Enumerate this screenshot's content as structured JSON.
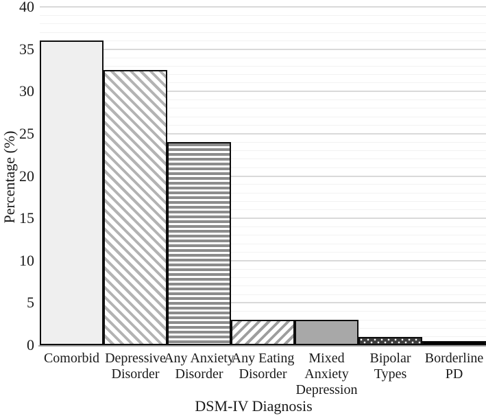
{
  "chart_data": {
    "type": "bar",
    "title": "",
    "xlabel": "DSM-IV Diagnosis",
    "ylabel": "Percentage (%)",
    "categories": [
      "Comorbid",
      "Depressive Disorder",
      "Any Anxiety Disorder",
      "Any Eating Disorder",
      "Mixed Anxiety Depression",
      "Bipolar Types",
      "Borderline PD"
    ],
    "values": [
      36,
      32.5,
      24,
      3,
      3,
      1,
      0.5
    ],
    "ylim": [
      0,
      40
    ],
    "yticks": [
      0,
      5,
      10,
      15,
      20,
      25,
      30,
      35,
      40
    ],
    "minor_grid_step": 1,
    "major_grid_step": 5,
    "grid": "horizontal",
    "legend_position": "none",
    "bar_gap": 0,
    "bar_patterns": [
      "solid-light",
      "diagonal-back",
      "horizontal-stripes",
      "diagonal-forward",
      "solid-gray",
      "dots-on-dark",
      "solid-black"
    ],
    "colors": {
      "bar_outline": "#0d0d0d",
      "light_fill": "#efefef",
      "back_diagonal_stripe": "#b3b3b3",
      "horizontal_stripe": "#8c8c8c",
      "forward_diagonal_stripe": "#9e9e9e",
      "solid_gray_fill": "#a8a8a8",
      "dotted_dark_fill": "#3d3d3d",
      "black_fill": "#000000",
      "major_gridline": "#d9d9d9",
      "minor_gridline": "#f2f2f2",
      "axis_line": "#a6a6a6",
      "text": "#1a1a1a"
    }
  }
}
